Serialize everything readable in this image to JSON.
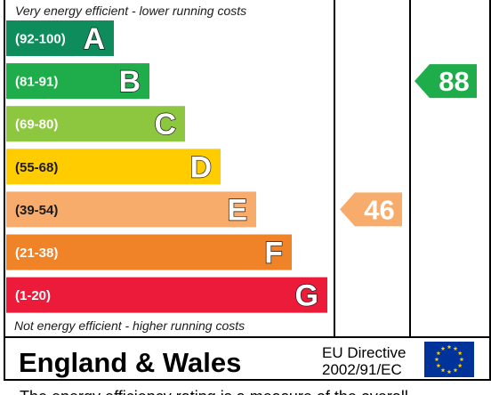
{
  "chart_data": {
    "type": "bar",
    "categories": [
      "A",
      "B",
      "C",
      "D",
      "E",
      "F",
      "G"
    ],
    "ranges": [
      "(92-100)",
      "(81-91)",
      "(69-80)",
      "(55-68)",
      "(39-54)",
      "(21-38)",
      "(1-20)"
    ],
    "colors": [
      "#0f8c5b",
      "#1fad4b",
      "#8dc63f",
      "#ffcc00",
      "#f7ac6b",
      "#f08228",
      "#ed1b3a"
    ],
    "current": {
      "value": 46,
      "band": "E",
      "color": "#f7ac6b"
    },
    "potential": {
      "value": 88,
      "band": "B",
      "color": "#1fad4b"
    }
  },
  "header_note": "Very energy efficient - lower running costs",
  "footer_note": "Not energy efficient - higher running costs",
  "footer": {
    "region": "England & Wales",
    "eu_line1": "EU Directive",
    "eu_line2": "2002/91/EC"
  },
  "bottom_text": "The energy efficiency rating is a measure of the overall"
}
